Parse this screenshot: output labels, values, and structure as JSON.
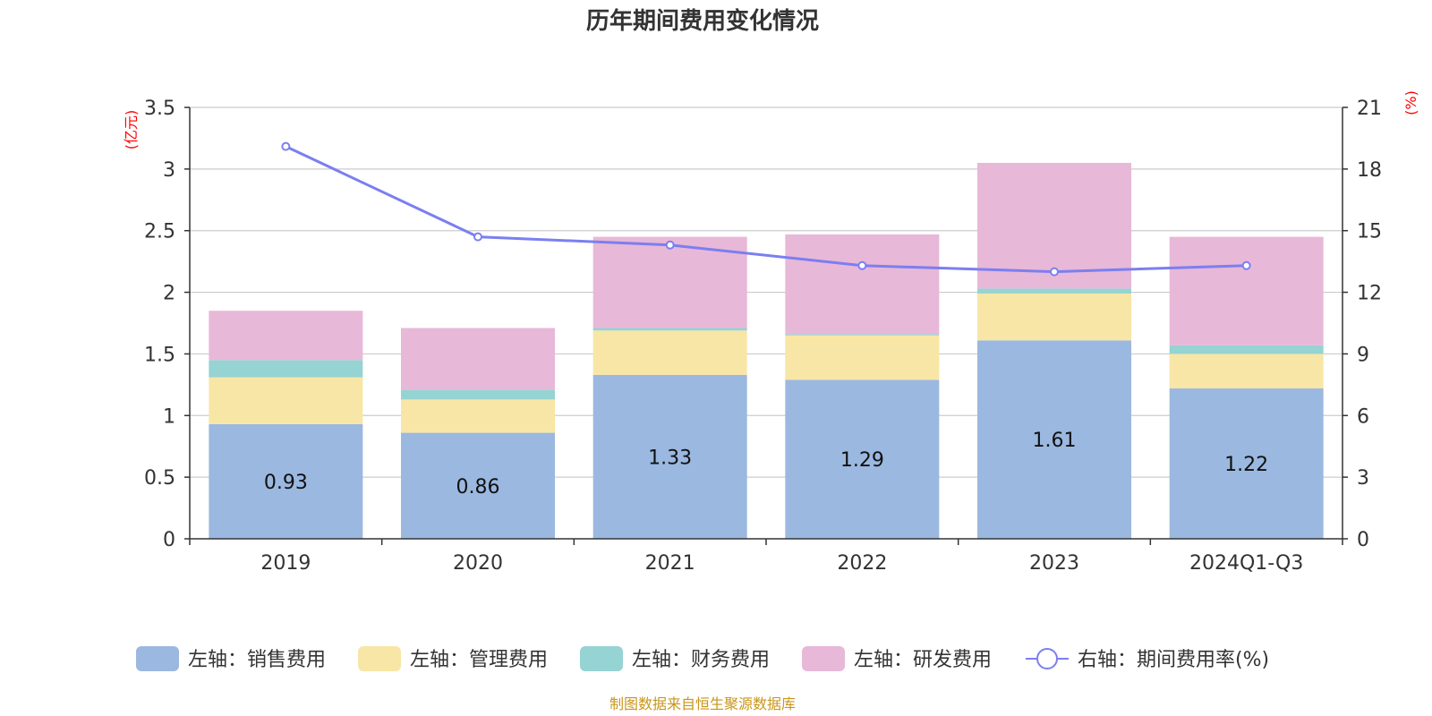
{
  "chart_data": {
    "type": "bar",
    "stacked": true,
    "title": "历年期间费用变化情况",
    "categories": [
      "2019",
      "2020",
      "2021",
      "2022",
      "2023",
      "2024Q1-Q3"
    ],
    "y_left": {
      "unit_label": "(亿元)",
      "ylim": [
        0,
        3.5
      ],
      "ticks": [
        "0",
        "0.5",
        "1",
        "1.5",
        "2",
        "2.5",
        "3",
        "3.5"
      ]
    },
    "y_right": {
      "unit_label": "(%)",
      "ylim": [
        0,
        21
      ],
      "ticks": [
        "0",
        "3",
        "6",
        "9",
        "12",
        "15",
        "18",
        "21"
      ]
    },
    "grid": true,
    "legend_position": "bottom",
    "series": [
      {
        "name": "左轴：销售费用",
        "axis": "left",
        "type": "bar",
        "color": "#9bb8e0",
        "values": [
          0.93,
          0.86,
          1.33,
          1.29,
          1.61,
          1.22
        ],
        "show_labels": true
      },
      {
        "name": "左轴：管理费用",
        "axis": "left",
        "type": "bar",
        "color": "#f8e6a6",
        "values": [
          0.38,
          0.27,
          0.36,
          0.36,
          0.38,
          0.28
        ]
      },
      {
        "name": "左轴：财务费用",
        "axis": "left",
        "type": "bar",
        "color": "#96d3d3",
        "values": [
          0.14,
          0.08,
          0.02,
          0.01,
          0.04,
          0.07
        ]
      },
      {
        "name": "左轴：研发费用",
        "axis": "left",
        "type": "bar",
        "color": "#e8b8d8",
        "values": [
          0.4,
          0.5,
          0.74,
          0.81,
          1.02,
          0.88
        ]
      },
      {
        "name": "右轴：期间费用率(%)",
        "axis": "right",
        "type": "line",
        "color": "#7b7ff0",
        "values": [
          19.1,
          14.7,
          14.3,
          13.3,
          13.0,
          13.3
        ]
      }
    ],
    "source": "制图数据来自恒生聚源数据库"
  }
}
